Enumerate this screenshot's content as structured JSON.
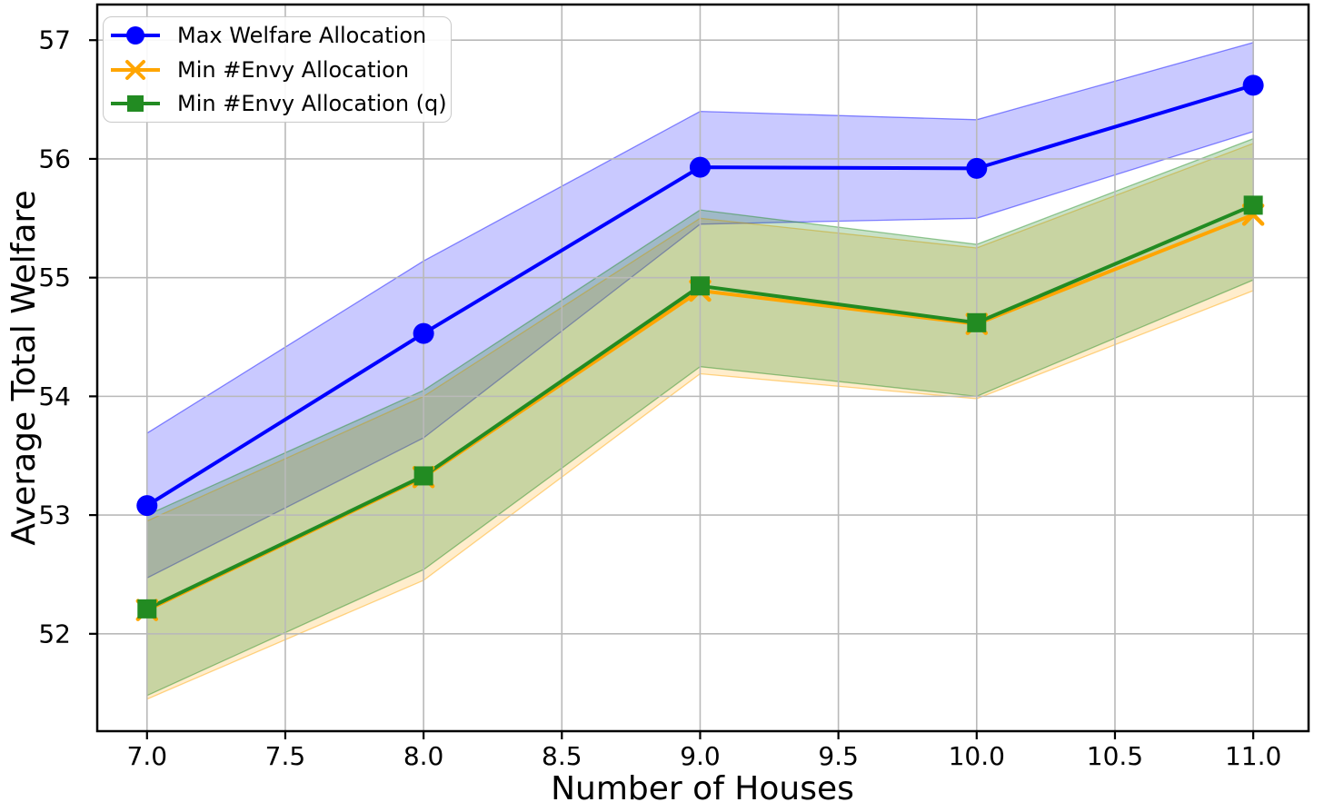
{
  "figure": {
    "background": "#ffffff"
  },
  "chart_data": {
    "type": "line",
    "title": "",
    "xlabel": "Number of Houses",
    "ylabel": "Average Total Welfare",
    "x": [
      7,
      8,
      9,
      10,
      11
    ],
    "xlim": [
      6.82,
      11.2
    ],
    "ylim": [
      51.18,
      57.3
    ],
    "grid": true,
    "legend_position": "upper-left",
    "xticks": {
      "values": [
        7.0,
        7.5,
        8.0,
        8.5,
        9.0,
        9.5,
        10.0,
        10.5,
        11.0
      ],
      "labels": [
        "7.0",
        "7.5",
        "8.0",
        "8.5",
        "9.0",
        "9.5",
        "10.0",
        "10.5",
        "11.0"
      ]
    },
    "yticks": {
      "values": [
        52,
        53,
        54,
        55,
        56,
        57
      ],
      "labels": [
        "52",
        "53",
        "54",
        "55",
        "56",
        "57"
      ]
    },
    "series": [
      {
        "name": "Max Welfare Allocation",
        "color": "#0000ff",
        "marker": "circle",
        "values": [
          53.08,
          54.53,
          55.93,
          55.92,
          56.62
        ],
        "band_high": [
          53.69,
          55.14,
          56.4,
          56.33,
          56.98
        ],
        "band_low": [
          52.47,
          53.65,
          55.45,
          55.5,
          56.23
        ],
        "band_alpha": 0.21
      },
      {
        "name": "Min #Envy Allocation",
        "color": "#ffa500",
        "marker": "x",
        "values": [
          52.2,
          53.32,
          54.89,
          54.61,
          55.53
        ],
        "band_high": [
          52.95,
          54.0,
          55.5,
          55.25,
          56.13
        ],
        "band_low": [
          51.45,
          52.45,
          54.19,
          53.98,
          54.89
        ],
        "band_alpha": 0.2
      },
      {
        "name": "Min #Envy Allocation (q)",
        "color": "#228b22",
        "marker": "square",
        "values": [
          52.21,
          53.33,
          54.93,
          54.62,
          55.61
        ],
        "band_high": [
          53.0,
          54.05,
          55.57,
          55.28,
          56.17
        ],
        "band_low": [
          51.48,
          52.54,
          54.25,
          54.0,
          54.98
        ],
        "band_alpha": 0.25
      }
    ],
    "style": {
      "grid_color": "#b9b9b9",
      "spine_color": "#000000",
      "tick_color": "#000000"
    }
  }
}
